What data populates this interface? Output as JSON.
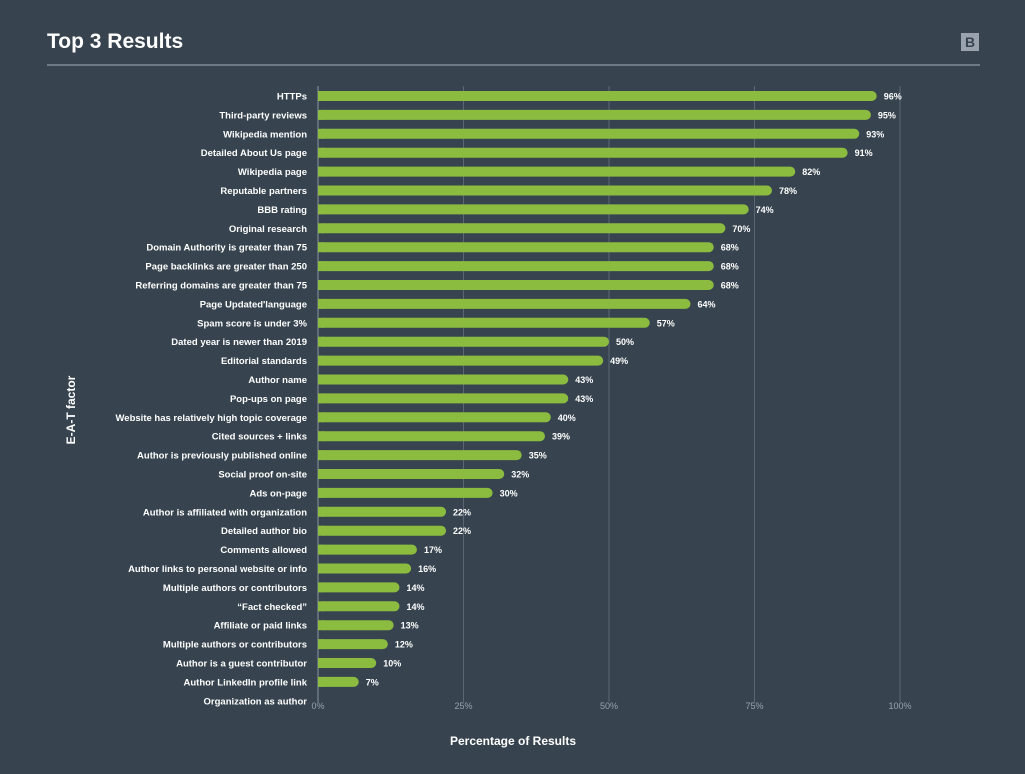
{
  "header": {
    "title": "Top 3 Results",
    "logo_letter": "B"
  },
  "chart_data": {
    "type": "bar",
    "orientation": "horizontal",
    "title": "Top 3 Results",
    "xlabel": "Percentage of Results",
    "ylabel": "E-A-T factor",
    "xlim": [
      0,
      100
    ],
    "xticks": [
      "0%",
      "25%",
      "50%",
      "75%",
      "100%"
    ],
    "grid": true,
    "categories": [
      "HTTPs",
      "Third-party reviews",
      "Wikipedia mention",
      "Detailed About Us page",
      "Wikipedia page",
      "Reputable partners",
      "BBB rating",
      "Original research",
      "Domain Authority is greater than 75",
      "Page backlinks are greater than 250",
      "Referring domains are greater than 75",
      "Page Updated'language",
      "Spam score is under 3%",
      "Dated year is newer than 2019",
      "Editorial standards",
      "Author name",
      "Pop-ups on page",
      "Website has relatively high topic coverage",
      "Cited sources + links",
      "Author is previously published online",
      "Social proof on-site",
      "Ads on-page",
      "Author is affiliated with organization",
      "Detailed author bio",
      "Comments allowed",
      "Author links to personal website or info",
      "Multiple authors or contributors",
      "“Fact checked”",
      "Affiliate or paid links",
      "Multiple authors or contributors",
      "Author is a guest contributor",
      "Author LinkedIn profile link",
      "Organization as author"
    ],
    "values": [
      96,
      95,
      93,
      91,
      82,
      78,
      74,
      70,
      68,
      68,
      68,
      64,
      57,
      50,
      49,
      43,
      43,
      40,
      39,
      35,
      32,
      30,
      22,
      22,
      17,
      16,
      14,
      14,
      13,
      12,
      10,
      7,
      0
    ],
    "value_labels": [
      "96%",
      "95%",
      "93%",
      "91%",
      "82%",
      "78%",
      "74%",
      "70%",
      "68%",
      "68%",
      "68%",
      "64%",
      "57%",
      "50%",
      "49%",
      "43%",
      "43%",
      "40%",
      "39%",
      "35%",
      "32%",
      "30%",
      "22%",
      "22%",
      "17%",
      "16%",
      "14%",
      "14%",
      "13%",
      "12%",
      "10%",
      "7%",
      ""
    ],
    "colors": {
      "bar": "#8bbc3f",
      "background": "#37444f",
      "grid": "#5b6672"
    }
  }
}
